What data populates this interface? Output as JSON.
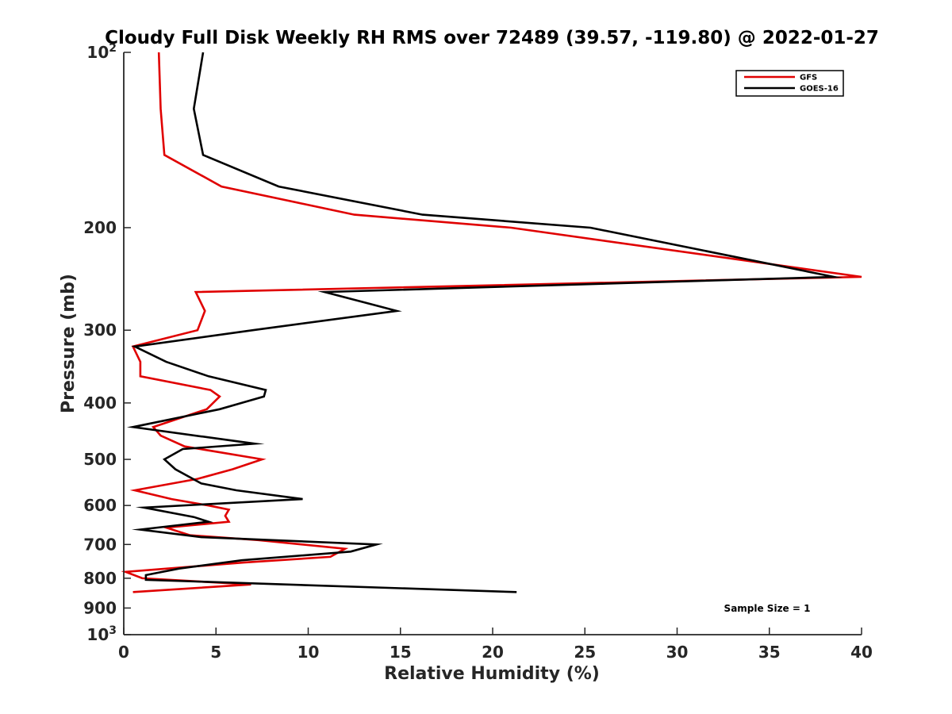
{
  "chart_data": {
    "type": "line",
    "title": "Cloudy Full Disk Weekly RH RMS over 72489 (39.57, -119.80) @ 2022-01-27",
    "xlabel": "Relative Humidity (%)",
    "ylabel": "Pressure (mb)",
    "xlim": [
      0,
      40
    ],
    "ylim": [
      100,
      1000
    ],
    "y_scale": "log",
    "y_reversed": true,
    "x_ticks": [
      0,
      5,
      10,
      15,
      20,
      25,
      30,
      35,
      40
    ],
    "x_tick_labels": [
      "0",
      "5",
      "10",
      "15",
      "20",
      "25",
      "30",
      "35",
      "40"
    ],
    "y_ticks": [
      100,
      200,
      300,
      400,
      500,
      600,
      700,
      800,
      900,
      1000
    ],
    "y_tick_labels": [
      "10^2",
      "200",
      "300",
      "400",
      "500",
      "600",
      "700",
      "800",
      "900",
      "10^3"
    ],
    "grid": false,
    "legend_position": "top-right",
    "note": "Sample Size = 1",
    "series": [
      {
        "name": "GFS",
        "color": "#e00000",
        "points": [
          [
            1.9,
            100
          ],
          [
            2.0,
            125
          ],
          [
            2.2,
            150
          ],
          [
            5.3,
            170
          ],
          [
            12.5,
            190
          ],
          [
            21,
            200
          ],
          [
            40,
            243
          ],
          [
            3.9,
            258
          ],
          [
            4.4,
            278
          ],
          [
            4.0,
            300
          ],
          [
            0.5,
            320
          ],
          [
            0.9,
            340
          ],
          [
            0.9,
            360
          ],
          [
            4.7,
            380
          ],
          [
            5.2,
            390
          ],
          [
            4.5,
            410
          ],
          [
            1.6,
            440
          ],
          [
            2.0,
            455
          ],
          [
            3.3,
            475
          ],
          [
            7.5,
            500
          ],
          [
            5.9,
            520
          ],
          [
            4.0,
            540
          ],
          [
            0.6,
            565
          ],
          [
            2.6,
            585
          ],
          [
            4.6,
            600
          ],
          [
            5.7,
            610
          ],
          [
            5.5,
            625
          ],
          [
            5.7,
            640
          ],
          [
            2.3,
            655
          ],
          [
            3.6,
            675
          ],
          [
            7.3,
            688
          ],
          [
            12.0,
            712
          ],
          [
            11.2,
            735
          ],
          [
            6.5,
            752
          ],
          [
            0.1,
            780
          ],
          [
            1.0,
            800
          ],
          [
            6.9,
            820
          ],
          [
            0.5,
            845
          ]
        ]
      },
      {
        "name": "GOES-16",
        "color": "#000000",
        "points": [
          [
            4.3,
            100
          ],
          [
            3.8,
            125
          ],
          [
            4.3,
            150
          ],
          [
            8.4,
            170
          ],
          [
            16.2,
            190
          ],
          [
            25.3,
            200
          ],
          [
            38.5,
            243
          ],
          [
            10.9,
            258
          ],
          [
            14.8,
            278
          ],
          [
            7.0,
            300
          ],
          [
            0.6,
            320
          ],
          [
            2.3,
            340
          ],
          [
            4.6,
            360
          ],
          [
            7.7,
            380
          ],
          [
            7.6,
            390
          ],
          [
            5.2,
            410
          ],
          [
            0.5,
            440
          ],
          [
            7.1,
            470
          ],
          [
            3.2,
            480
          ],
          [
            2.2,
            500
          ],
          [
            2.8,
            520
          ],
          [
            4.2,
            550
          ],
          [
            6.1,
            565
          ],
          [
            9.7,
            585
          ],
          [
            1.1,
            605
          ],
          [
            3.8,
            628
          ],
          [
            4.6,
            640
          ],
          [
            0.9,
            660
          ],
          [
            4.2,
            680
          ],
          [
            13.7,
            700
          ],
          [
            12.3,
            720
          ],
          [
            6.4,
            745
          ],
          [
            3.0,
            770
          ],
          [
            1.2,
            790
          ],
          [
            1.2,
            805
          ],
          [
            21.3,
            845
          ]
        ]
      }
    ]
  }
}
